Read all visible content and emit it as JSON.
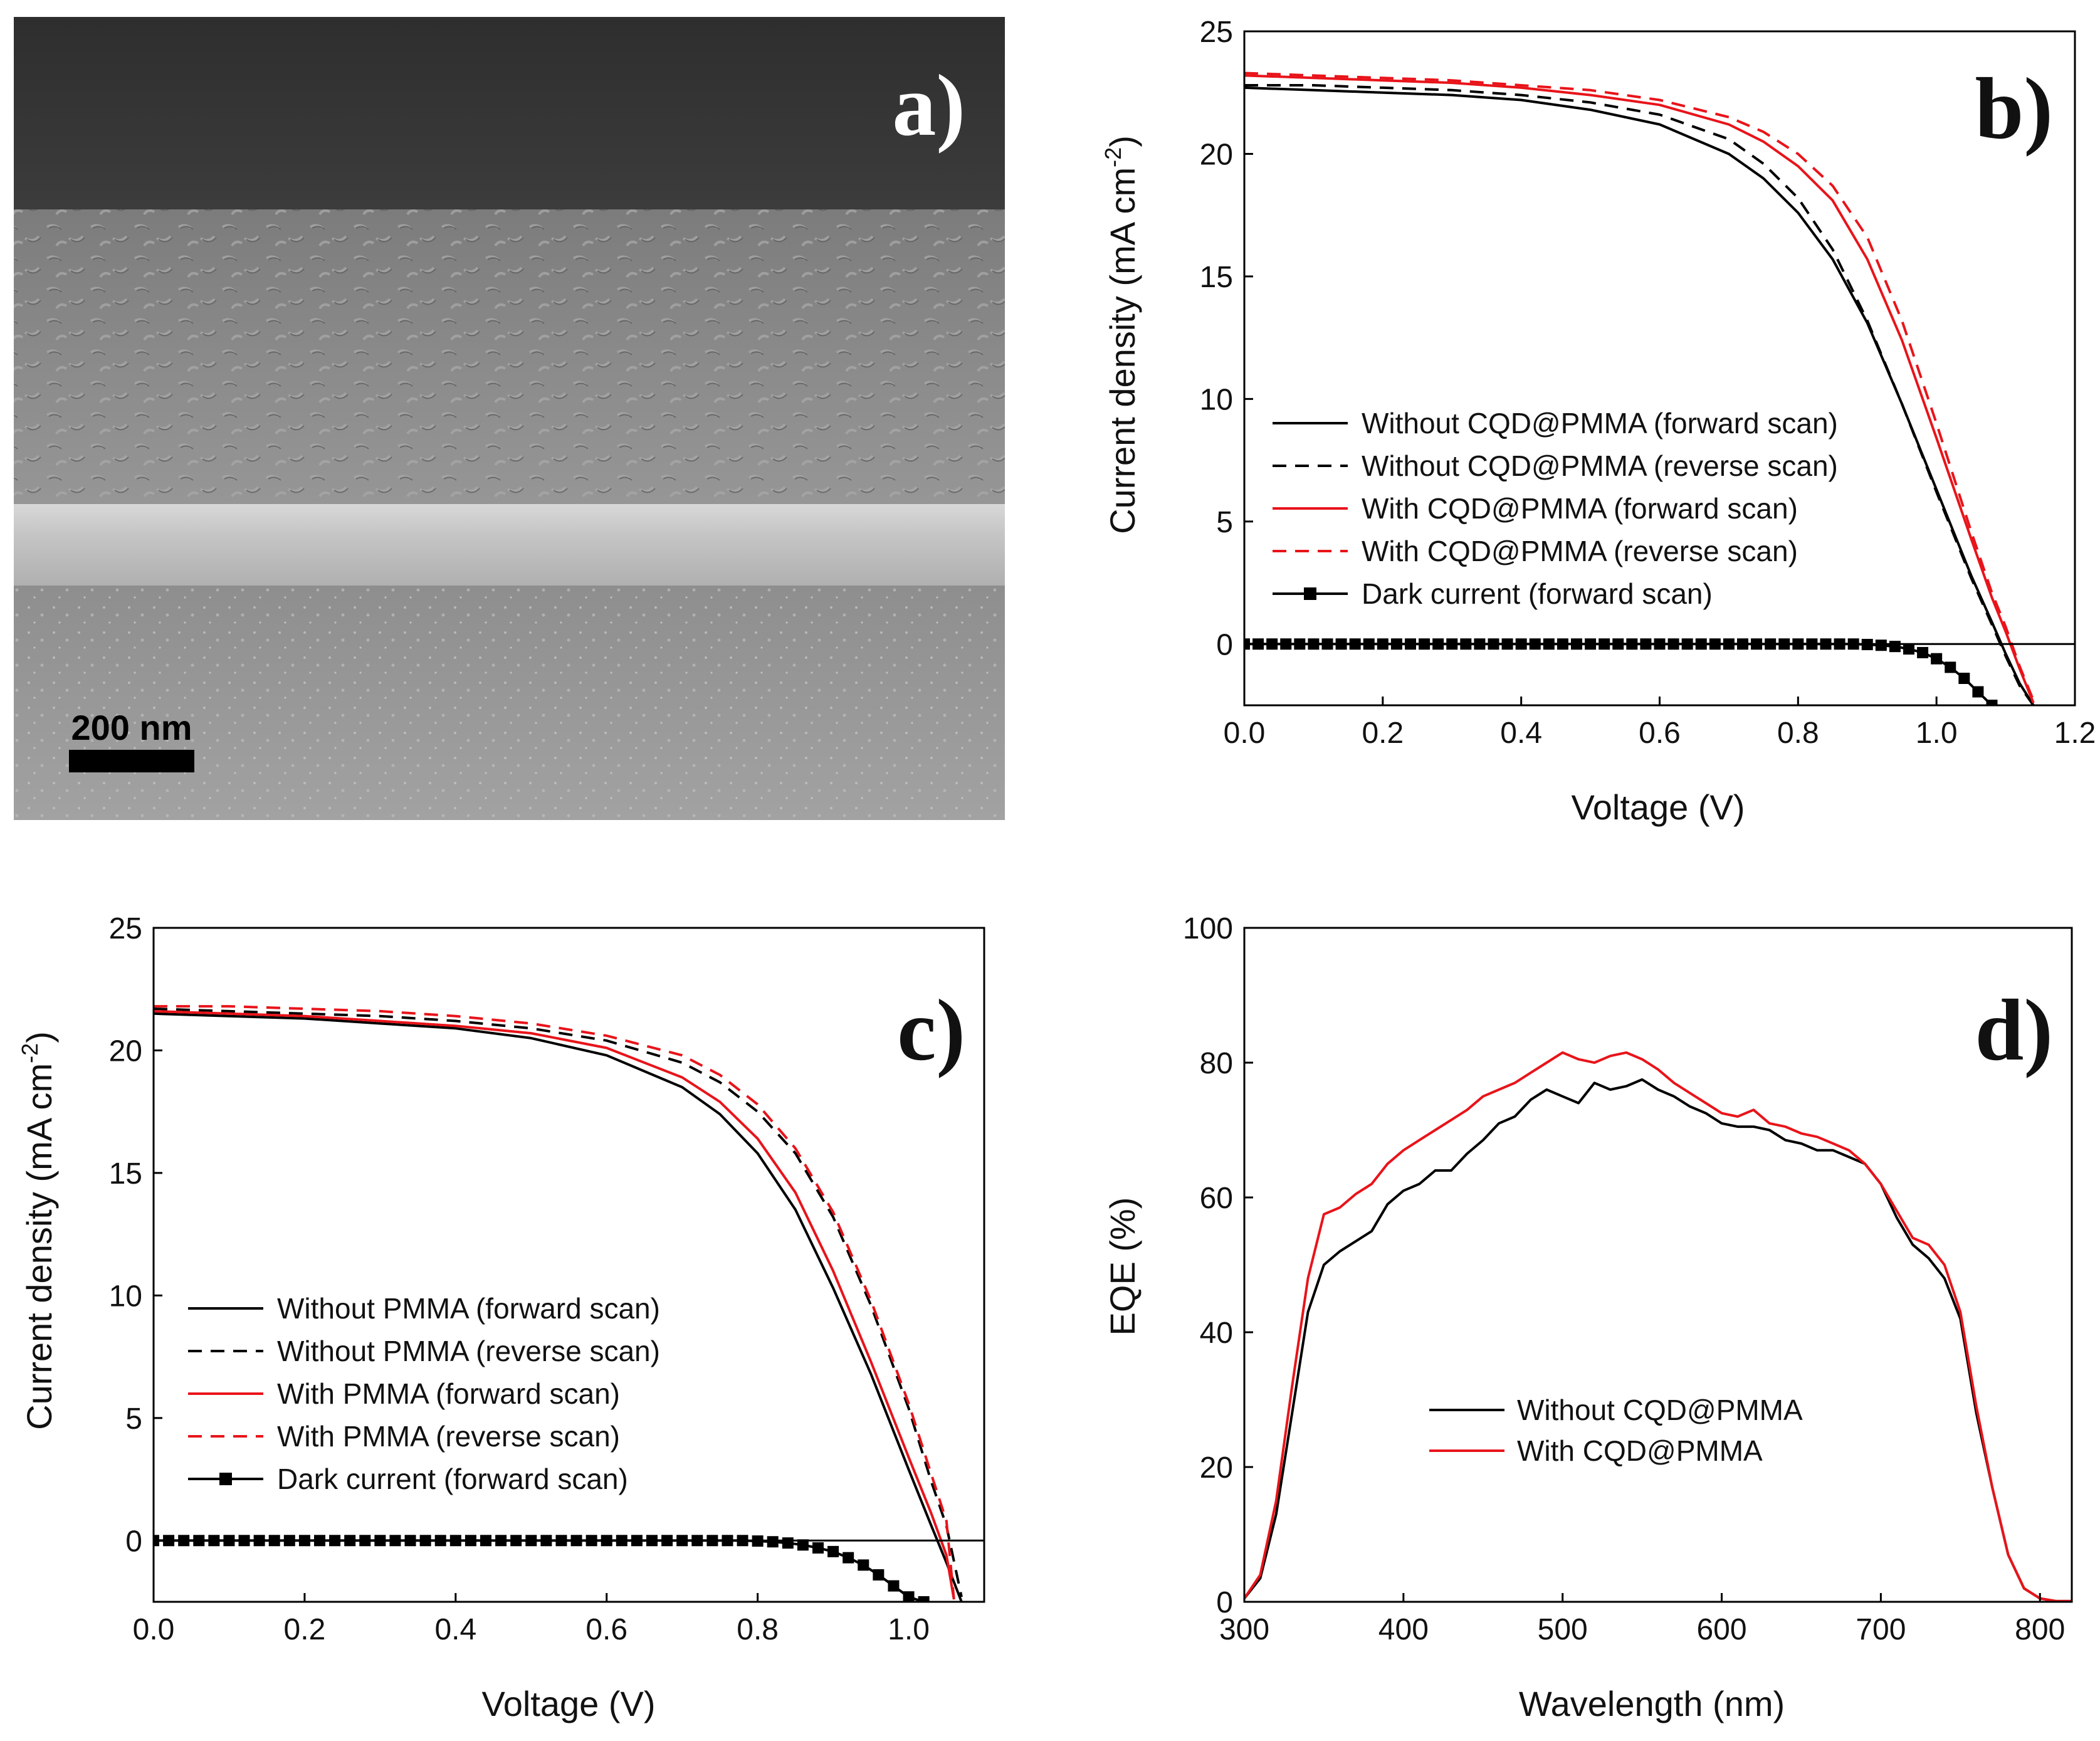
{
  "colors": {
    "black": "#000000",
    "red": "#e8141a"
  },
  "panel_a": {
    "label": "a)",
    "scalebar_label": "200 nm",
    "description_icon": "sem-cross-section-image"
  },
  "chart_data": [
    {
      "id": "b",
      "type": "line",
      "panel_label": "b)",
      "xlabel": "Voltage (V)",
      "ylabel_main": "Current density (mA cm",
      "ylabel_sup": "-2",
      "ylabel_end": ")",
      "xlim": [
        0.0,
        1.2
      ],
      "ylim": [
        -2.5,
        25
      ],
      "xticks": [
        0.0,
        0.2,
        0.4,
        0.6,
        0.8,
        1.0,
        1.2
      ],
      "xtick_labels": [
        "0.0",
        "0.2",
        "0.4",
        "0.6",
        "0.8",
        "1.0",
        "1.2"
      ],
      "yticks": [
        0,
        5,
        10,
        15,
        20,
        25
      ],
      "ytick_labels": [
        "0",
        "5",
        "10",
        "15",
        "20",
        "25"
      ],
      "zero_line": true,
      "legend": "center-right",
      "series": [
        {
          "name": "Without CQD@PMMA (forward scan)",
          "color": "#000000",
          "dash": false,
          "x": [
            0,
            0.1,
            0.2,
            0.3,
            0.4,
            0.5,
            0.6,
            0.7,
            0.75,
            0.8,
            0.85,
            0.9,
            0.95,
            1.0,
            1.05,
            1.08,
            1.1,
            1.12,
            1.14
          ],
          "y": [
            22.7,
            22.6,
            22.5,
            22.4,
            22.2,
            21.8,
            21.2,
            20.0,
            19.0,
            17.6,
            15.7,
            13.1,
            9.8,
            6.3,
            2.8,
            0.9,
            -0.4,
            -1.6,
            -2.5
          ]
        },
        {
          "name": "Without CQD@PMMA (reverse scan)",
          "color": "#000000",
          "dash": true,
          "x": [
            0,
            0.1,
            0.2,
            0.3,
            0.4,
            0.5,
            0.6,
            0.7,
            0.75,
            0.8,
            0.85,
            0.9,
            0.95,
            1.0,
            1.05,
            1.08,
            1.1,
            1.12,
            1.14
          ],
          "y": [
            22.8,
            22.8,
            22.7,
            22.6,
            22.4,
            22.1,
            21.6,
            20.6,
            19.6,
            18.2,
            16.1,
            13.2,
            9.8,
            6.2,
            2.7,
            0.8,
            -0.5,
            -1.7,
            -2.5
          ]
        },
        {
          "name": "With CQD@PMMA (forward scan)",
          "color": "#e8141a",
          "dash": false,
          "x": [
            0,
            0.1,
            0.2,
            0.3,
            0.4,
            0.5,
            0.6,
            0.7,
            0.75,
            0.8,
            0.85,
            0.9,
            0.95,
            1.0,
            1.05,
            1.08,
            1.1,
            1.12,
            1.14
          ],
          "y": [
            23.2,
            23.1,
            23.0,
            22.9,
            22.7,
            22.4,
            22.0,
            21.2,
            20.5,
            19.5,
            18.1,
            15.7,
            12.4,
            8.4,
            4.3,
            1.9,
            0.5,
            -1.0,
            -2.4
          ]
        },
        {
          "name": "With CQD@PMMA (reverse scan)",
          "color": "#e8141a",
          "dash": true,
          "x": [
            0,
            0.1,
            0.2,
            0.3,
            0.4,
            0.5,
            0.6,
            0.7,
            0.75,
            0.8,
            0.85,
            0.9,
            0.95,
            1.0,
            1.05,
            1.08,
            1.1,
            1.12,
            1.14
          ],
          "y": [
            23.3,
            23.2,
            23.1,
            23.0,
            22.8,
            22.6,
            22.2,
            21.5,
            20.9,
            20.0,
            18.7,
            16.6,
            13.2,
            9.0,
            4.6,
            2.1,
            0.7,
            -0.9,
            -2.3
          ]
        },
        {
          "name": "Dark current (forward scan)",
          "color": "#000000",
          "dash": false,
          "markers": true,
          "x": [
            0.0,
            0.02,
            0.04,
            0.06,
            0.08,
            0.1,
            0.12,
            0.14,
            0.16,
            0.18,
            0.2,
            0.22,
            0.24,
            0.26,
            0.28,
            0.3,
            0.32,
            0.34,
            0.36,
            0.38,
            0.4,
            0.42,
            0.44,
            0.46,
            0.48,
            0.5,
            0.52,
            0.54,
            0.56,
            0.58,
            0.6,
            0.62,
            0.64,
            0.66,
            0.68,
            0.7,
            0.72,
            0.74,
            0.76,
            0.78,
            0.8,
            0.82,
            0.84,
            0.86,
            0.88,
            0.9,
            0.92,
            0.94,
            0.96,
            0.98,
            1.0,
            1.02,
            1.04,
            1.06,
            1.08
          ],
          "y": [
            0,
            0,
            0,
            0,
            0,
            0,
            0,
            0,
            0,
            0,
            0,
            0,
            0,
            0,
            0,
            0,
            0,
            0,
            0,
            0,
            0,
            0,
            0,
            0,
            0,
            0,
            0,
            0,
            0,
            0,
            0,
            0,
            0,
            0,
            0,
            0,
            0,
            0,
            0,
            0,
            0,
            0,
            0,
            0,
            0,
            -0.02,
            -0.05,
            -0.1,
            -0.2,
            -0.35,
            -0.6,
            -0.95,
            -1.4,
            -1.95,
            -2.5
          ]
        }
      ]
    },
    {
      "id": "c",
      "type": "line",
      "panel_label": "c)",
      "xlabel": "Voltage (V)",
      "ylabel_main": "Current density (mA cm",
      "ylabel_sup": "-2",
      "ylabel_end": ")",
      "xlim": [
        0.0,
        1.1
      ],
      "ylim": [
        -2.5,
        25
      ],
      "xticks": [
        0.0,
        0.2,
        0.4,
        0.6,
        0.8,
        1.0
      ],
      "xtick_labels": [
        "0.0",
        "0.2",
        "0.4",
        "0.6",
        "0.8",
        "1.0"
      ],
      "yticks": [
        0,
        5,
        10,
        15,
        20,
        25
      ],
      "ytick_labels": [
        "0",
        "5",
        "10",
        "15",
        "20",
        "25"
      ],
      "zero_line": true,
      "legend": "center-left",
      "series": [
        {
          "name": "Without PMMA (forward scan)",
          "color": "#000000",
          "dash": false,
          "x": [
            0,
            0.1,
            0.2,
            0.3,
            0.4,
            0.5,
            0.6,
            0.7,
            0.75,
            0.8,
            0.85,
            0.9,
            0.95,
            1.0,
            1.03,
            1.05,
            1.07
          ],
          "y": [
            21.5,
            21.4,
            21.3,
            21.1,
            20.9,
            20.5,
            19.8,
            18.5,
            17.4,
            15.8,
            13.5,
            10.3,
            6.8,
            2.9,
            0.6,
            -0.9,
            -2.5
          ]
        },
        {
          "name": "Without PMMA (reverse scan)",
          "color": "#000000",
          "dash": true,
          "x": [
            0,
            0.1,
            0.2,
            0.3,
            0.4,
            0.5,
            0.6,
            0.7,
            0.75,
            0.8,
            0.85,
            0.9,
            0.95,
            1.0,
            1.03,
            1.05,
            1.07
          ],
          "y": [
            21.7,
            21.6,
            21.5,
            21.4,
            21.2,
            20.9,
            20.4,
            19.5,
            18.7,
            17.5,
            15.8,
            13.2,
            9.6,
            5.4,
            2.4,
            0.6,
            -2.3
          ]
        },
        {
          "name": "With PMMA (forward scan)",
          "color": "#e8141a",
          "dash": false,
          "x": [
            0,
            0.1,
            0.2,
            0.3,
            0.4,
            0.5,
            0.6,
            0.7,
            0.75,
            0.8,
            0.85,
            0.9,
            0.95,
            1.0,
            1.03,
            1.05,
            1.06
          ],
          "y": [
            21.6,
            21.5,
            21.4,
            21.2,
            21.0,
            20.7,
            20.1,
            18.9,
            17.9,
            16.4,
            14.2,
            11.0,
            7.3,
            3.4,
            1.1,
            -0.6,
            -2.4
          ]
        },
        {
          "name": "With PMMA (reverse scan)",
          "color": "#e8141a",
          "dash": true,
          "x": [
            0,
            0.1,
            0.2,
            0.3,
            0.4,
            0.5,
            0.6,
            0.7,
            0.75,
            0.8,
            0.85,
            0.9,
            0.95,
            1.0,
            1.03,
            1.05,
            1.06
          ],
          "y": [
            21.8,
            21.8,
            21.7,
            21.6,
            21.4,
            21.1,
            20.6,
            19.8,
            19.0,
            17.8,
            16.0,
            13.4,
            9.8,
            5.6,
            2.7,
            0.8,
            -2.4
          ]
        },
        {
          "name": "Dark current (forward scan)",
          "color": "#000000",
          "dash": false,
          "markers": true,
          "x": [
            0.0,
            0.02,
            0.04,
            0.06,
            0.08,
            0.1,
            0.12,
            0.14,
            0.16,
            0.18,
            0.2,
            0.22,
            0.24,
            0.26,
            0.28,
            0.3,
            0.32,
            0.34,
            0.36,
            0.38,
            0.4,
            0.42,
            0.44,
            0.46,
            0.48,
            0.5,
            0.52,
            0.54,
            0.56,
            0.58,
            0.6,
            0.62,
            0.64,
            0.66,
            0.68,
            0.7,
            0.72,
            0.74,
            0.76,
            0.78,
            0.8,
            0.82,
            0.84,
            0.86,
            0.88,
            0.9,
            0.92,
            0.94,
            0.96,
            0.98,
            1.0,
            1.02
          ],
          "y": [
            0,
            0,
            0,
            0,
            0,
            0,
            0,
            0,
            0,
            0,
            0,
            0,
            0,
            0,
            0,
            0,
            0,
            0,
            0,
            0,
            0,
            0,
            0,
            0,
            0,
            0,
            0,
            0,
            0,
            0,
            0,
            0,
            0,
            0,
            0,
            0,
            0,
            0,
            0,
            0,
            -0.02,
            -0.05,
            -0.1,
            -0.18,
            -0.3,
            -0.45,
            -0.7,
            -1.0,
            -1.4,
            -1.85,
            -2.3,
            -2.5
          ]
        }
      ]
    },
    {
      "id": "d",
      "type": "line",
      "panel_label": "d)",
      "xlabel": "Wavelength (nm)",
      "ylabel_main": "EQE (%)",
      "ylabel_sup": "",
      "ylabel_end": "",
      "xlim": [
        300,
        820
      ],
      "ylim": [
        0,
        100
      ],
      "xticks": [
        300,
        400,
        500,
        600,
        700,
        800
      ],
      "xtick_labels": [
        "300",
        "400",
        "500",
        "600",
        "700",
        "800"
      ],
      "yticks": [
        0,
        20,
        40,
        60,
        80,
        100
      ],
      "ytick_labels": [
        "0",
        "20",
        "40",
        "60",
        "80",
        "100"
      ],
      "zero_line": false,
      "legend": "lower-center",
      "series": [
        {
          "name": "Without CQD@PMMA",
          "color": "#000000",
          "dash": false,
          "x": [
            300,
            310,
            320,
            330,
            340,
            350,
            360,
            370,
            380,
            390,
            400,
            410,
            420,
            430,
            440,
            450,
            460,
            470,
            480,
            490,
            500,
            510,
            520,
            530,
            540,
            550,
            560,
            570,
            580,
            590,
            600,
            610,
            620,
            630,
            640,
            650,
            660,
            670,
            680,
            690,
            700,
            710,
            720,
            730,
            740,
            750,
            760,
            770,
            780,
            790,
            800,
            810,
            820
          ],
          "y": [
            0.5,
            3.5,
            13,
            28,
            43,
            50,
            52,
            53.5,
            55,
            59,
            61,
            62,
            64,
            64,
            66.5,
            68.5,
            71,
            72,
            74.5,
            76,
            75,
            74,
            77,
            76,
            76.5,
            77.5,
            76,
            75,
            73.5,
            72.5,
            71,
            70.5,
            70.5,
            70,
            68.5,
            68,
            67,
            67,
            66,
            65,
            62,
            57,
            53,
            51,
            48,
            42,
            28,
            17,
            7,
            2,
            0.5,
            0.1,
            0.1
          ]
        },
        {
          "name": "With CQD@PMMA",
          "color": "#e8141a",
          "dash": false,
          "x": [
            300,
            310,
            320,
            330,
            340,
            350,
            360,
            370,
            380,
            390,
            400,
            410,
            420,
            430,
            440,
            450,
            460,
            470,
            480,
            490,
            500,
            510,
            520,
            530,
            540,
            550,
            560,
            570,
            580,
            590,
            600,
            610,
            620,
            630,
            640,
            650,
            660,
            670,
            680,
            690,
            700,
            710,
            720,
            730,
            740,
            750,
            760,
            770,
            780,
            790,
            800,
            810,
            820
          ],
          "y": [
            0.5,
            4,
            15,
            32,
            48,
            57.5,
            58.5,
            60.5,
            62,
            65,
            67,
            68.5,
            70,
            71.5,
            73,
            75,
            76,
            77,
            78.5,
            80,
            81.5,
            80.5,
            80,
            81,
            81.5,
            80.5,
            79,
            77,
            75.5,
            74,
            72.5,
            72,
            73,
            71,
            70.5,
            69.5,
            69,
            68,
            67,
            65,
            62,
            58,
            54,
            53,
            50,
            43,
            29,
            17,
            7,
            2,
            0.5,
            0.1,
            0.1
          ]
        }
      ]
    }
  ]
}
